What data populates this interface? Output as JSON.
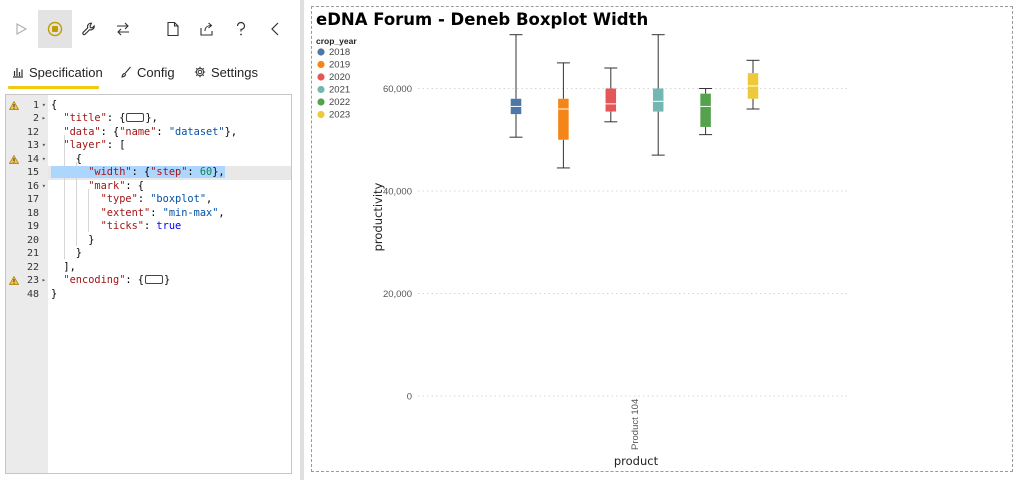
{
  "toolbar": {
    "items": [
      {
        "name": "run-icon",
        "active": false
      },
      {
        "name": "stop-icon",
        "active": true
      },
      {
        "name": "wrench-icon",
        "active": false
      },
      {
        "name": "swap-icon",
        "active": false
      },
      {
        "name": "new-file-icon",
        "active": false
      },
      {
        "name": "export-icon",
        "active": false
      },
      {
        "name": "help-icon",
        "active": false
      },
      {
        "name": "collapse-icon",
        "active": false
      }
    ]
  },
  "tabs": {
    "specification": "Specification",
    "config": "Config",
    "settings": "Settings",
    "active": "specification"
  },
  "editor": {
    "lines": [
      {
        "num": "1",
        "fold": "open",
        "warn": true
      },
      {
        "num": "2",
        "fold": "closed",
        "warn": false
      },
      {
        "num": "12",
        "fold": "",
        "warn": false
      },
      {
        "num": "13",
        "fold": "open",
        "warn": false
      },
      {
        "num": "14",
        "fold": "open",
        "warn": true
      },
      {
        "num": "15",
        "fold": "",
        "warn": false
      },
      {
        "num": "16",
        "fold": "open",
        "warn": false
      },
      {
        "num": "17",
        "fold": "",
        "warn": false
      },
      {
        "num": "18",
        "fold": "",
        "warn": false
      },
      {
        "num": "19",
        "fold": "",
        "warn": false
      },
      {
        "num": "20",
        "fold": "",
        "warn": false
      },
      {
        "num": "21",
        "fold": "",
        "warn": false
      },
      {
        "num": "22",
        "fold": "",
        "warn": false
      },
      {
        "num": "23",
        "fold": "closed",
        "warn": true
      },
      {
        "num": "48",
        "fold": "",
        "warn": false
      }
    ],
    "code": [
      "{",
      "  \"title\": {…},",
      "  \"data\": {\"name\": \"dataset\"},",
      "  \"layer\": [",
      "    {",
      "      \"width\": {\"step\": 60},",
      "      \"mark\": {",
      "        \"type\": \"boxplot\",",
      "        \"extent\": \"min-max\",",
      "        \"ticks\": true",
      "      }",
      "    }",
      "  ],",
      "  \"encoding\": {…}",
      "}"
    ],
    "highlighted_line": 15
  },
  "visual": {
    "title": "eDNA Forum - Deneb Boxplot Width"
  },
  "chart_data": {
    "type": "boxplot",
    "title": "eDNA Forum - Deneb Boxplot Width",
    "xlabel": "product",
    "ylabel": "productivity",
    "categories": [
      "Product 104"
    ],
    "ylim": [
      0,
      70000
    ],
    "yticks": [
      0,
      20000,
      40000,
      60000
    ],
    "ytick_labels": [
      "0",
      "20,000",
      "40,000",
      "60,000"
    ],
    "grid": true,
    "legend": {
      "title": "crop_year",
      "position": "top-left"
    },
    "series": [
      {
        "name": "2018",
        "color": "#4c78a8",
        "min": 50500,
        "q1": 55000,
        "median": 56500,
        "q3": 58000,
        "max": 70500
      },
      {
        "name": "2019",
        "color": "#f58518",
        "min": 44500,
        "q1": 50000,
        "median": 56000,
        "q3": 58000,
        "max": 65000
      },
      {
        "name": "2020",
        "color": "#e45756",
        "min": 53500,
        "q1": 55500,
        "median": 57000,
        "q3": 60000,
        "max": 64000
      },
      {
        "name": "2021",
        "color": "#72b7b2",
        "min": 47000,
        "q1": 55500,
        "median": 57500,
        "q3": 60000,
        "max": 70500
      },
      {
        "name": "2022",
        "color": "#54a24b",
        "min": 51000,
        "q1": 52500,
        "median": 56500,
        "q3": 59000,
        "max": 60000
      },
      {
        "name": "2023",
        "color": "#eeca3b",
        "min": 56000,
        "q1": 58000,
        "median": 60500,
        "q3": 63000,
        "max": 65500
      }
    ]
  }
}
